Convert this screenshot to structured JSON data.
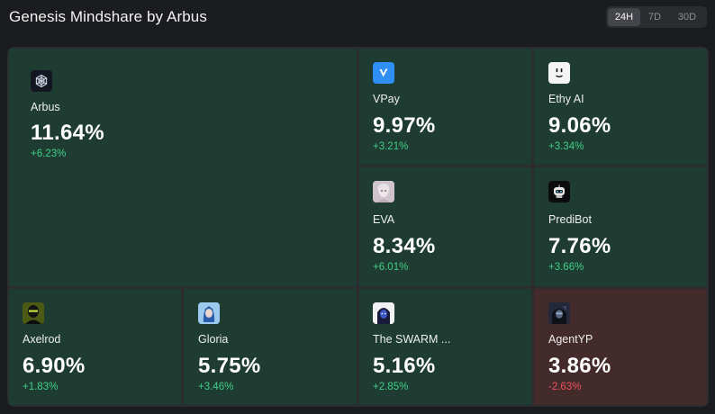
{
  "header": {
    "title": "Genesis Mindshare by Arbus"
  },
  "tabs": [
    {
      "label": "24H",
      "active": true
    },
    {
      "label": "7D",
      "active": false
    },
    {
      "label": "30D",
      "active": false
    }
  ],
  "colors": {
    "positive_tile": "#1f3c33",
    "negative_tile": "#432b2c",
    "positive_text": "#3fcf86",
    "negative_text": "#f0505a"
  },
  "agents": [
    {
      "name": "Arbus",
      "share": "11.64%",
      "change": "+6.23%",
      "icon": "arbus-logo-icon",
      "trend": "up"
    },
    {
      "name": "VPay",
      "share": "9.97%",
      "change": "+3.21%",
      "icon": "vpay-logo-icon",
      "trend": "up"
    },
    {
      "name": "Ethy AI",
      "share": "9.06%",
      "change": "+3.34%",
      "icon": "ethy-ai-logo-icon",
      "trend": "up"
    },
    {
      "name": "EVA",
      "share": "8.34%",
      "change": "+6.01%",
      "icon": "eva-avatar-icon",
      "trend": "up"
    },
    {
      "name": "PrediBot",
      "share": "7.76%",
      "change": "+3.66%",
      "icon": "predibot-logo-icon",
      "trend": "up"
    },
    {
      "name": "Axelrod",
      "share": "6.90%",
      "change": "+1.83%",
      "icon": "axelrod-avatar-icon",
      "trend": "up"
    },
    {
      "name": "Gloria",
      "share": "5.75%",
      "change": "+3.46%",
      "icon": "gloria-avatar-icon",
      "trend": "up"
    },
    {
      "name": "The SWARM ...",
      "share": "5.16%",
      "change": "+2.85%",
      "icon": "the-swarm-avatar-icon",
      "trend": "up"
    },
    {
      "name": "AgentYP",
      "share": "3.86%",
      "change": "-2.63%",
      "icon": "agentyp-avatar-icon",
      "trend": "down"
    }
  ]
}
